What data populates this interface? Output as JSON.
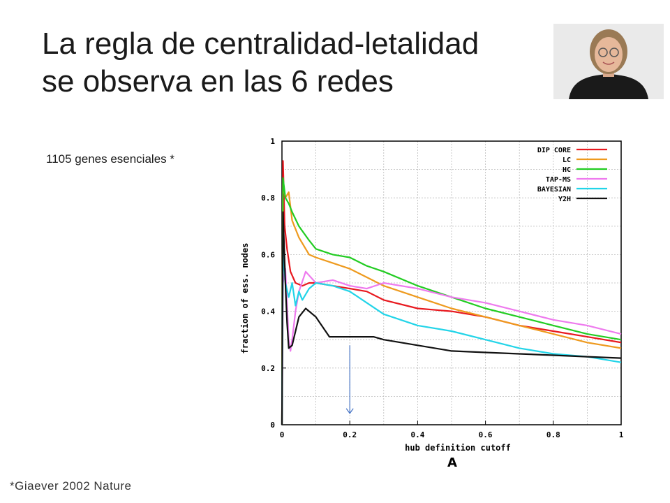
{
  "slide": {
    "title_line1": "La regla de centralidad-letalidad",
    "title_line2": "se observa en las 6 redes",
    "subtitle": "1105 genes esenciales *",
    "citation": "*Giaever 2002 Nature"
  },
  "photo": {
    "description": "portrait-photo"
  },
  "chart_data": {
    "type": "line",
    "title": "",
    "panel_label": "A",
    "xlabel": "hub definition cutoff",
    "ylabel": "fraction of ess. nodes",
    "xlim": [
      0,
      1
    ],
    "ylim": [
      0,
      1
    ],
    "xticks": [
      "0",
      "0.2",
      "0.4",
      "0.6",
      "0.8",
      "1"
    ],
    "yticks": [
      "0",
      "0.2",
      "0.4",
      "0.6",
      "0.8",
      "1"
    ],
    "grid": true,
    "legend_position": "top-right",
    "annotation_arrow_x": 0.2,
    "series": [
      {
        "name": "DIP CORE",
        "color": "#e8191f",
        "x": [
          0,
          0.003,
          0.008,
          0.015,
          0.025,
          0.04,
          0.06,
          0.08,
          0.1,
          0.15,
          0.2,
          0.25,
          0.3,
          0.4,
          0.5,
          0.6,
          0.7,
          0.8,
          0.9,
          1.0
        ],
        "y": [
          0,
          0.93,
          0.7,
          0.62,
          0.54,
          0.5,
          0.49,
          0.5,
          0.5,
          0.49,
          0.48,
          0.47,
          0.44,
          0.41,
          0.4,
          0.38,
          0.35,
          0.33,
          0.31,
          0.29
        ]
      },
      {
        "name": "LC",
        "color": "#ee9a1e",
        "x": [
          0,
          0.003,
          0.01,
          0.02,
          0.03,
          0.05,
          0.08,
          0.1,
          0.15,
          0.2,
          0.25,
          0.3,
          0.4,
          0.5,
          0.6,
          0.7,
          0.8,
          0.9,
          1.0
        ],
        "y": [
          0,
          0.85,
          0.8,
          0.82,
          0.72,
          0.66,
          0.6,
          0.59,
          0.57,
          0.55,
          0.52,
          0.49,
          0.45,
          0.41,
          0.38,
          0.35,
          0.32,
          0.29,
          0.27
        ]
      },
      {
        "name": "HC",
        "color": "#22cc22",
        "x": [
          0,
          0.003,
          0.01,
          0.02,
          0.03,
          0.05,
          0.08,
          0.1,
          0.15,
          0.2,
          0.25,
          0.3,
          0.4,
          0.5,
          0.6,
          0.7,
          0.8,
          0.9,
          1.0
        ],
        "y": [
          0,
          0.87,
          0.8,
          0.78,
          0.75,
          0.7,
          0.65,
          0.62,
          0.6,
          0.59,
          0.56,
          0.54,
          0.49,
          0.45,
          0.41,
          0.38,
          0.35,
          0.32,
          0.3
        ]
      },
      {
        "name": "TAP-MS",
        "color": "#ee7aee",
        "x": [
          0,
          0.003,
          0.01,
          0.02,
          0.025,
          0.03,
          0.04,
          0.05,
          0.07,
          0.1,
          0.15,
          0.2,
          0.25,
          0.3,
          0.4,
          0.5,
          0.6,
          0.7,
          0.8,
          0.9,
          1.0
        ],
        "y": [
          0,
          0.5,
          0.55,
          0.3,
          0.26,
          0.3,
          0.4,
          0.47,
          0.54,
          0.5,
          0.51,
          0.49,
          0.48,
          0.5,
          0.48,
          0.45,
          0.43,
          0.4,
          0.37,
          0.35,
          0.32
        ]
      },
      {
        "name": "BAYESIAN",
        "color": "#22d4e8",
        "x": [
          0,
          0.003,
          0.01,
          0.02,
          0.03,
          0.04,
          0.05,
          0.06,
          0.08,
          0.1,
          0.15,
          0.2,
          0.25,
          0.3,
          0.4,
          0.5,
          0.6,
          0.7,
          0.8,
          0.9,
          1.0
        ],
        "y": [
          0,
          0.62,
          0.5,
          0.45,
          0.5,
          0.42,
          0.47,
          0.44,
          0.48,
          0.5,
          0.49,
          0.47,
          0.43,
          0.39,
          0.35,
          0.33,
          0.3,
          0.27,
          0.25,
          0.24,
          0.22
        ]
      },
      {
        "name": "Y2H",
        "color": "#111111",
        "x": [
          0,
          0.003,
          0.01,
          0.015,
          0.02,
          0.03,
          0.05,
          0.07,
          0.1,
          0.14,
          0.2,
          0.27,
          0.3,
          0.4,
          0.5,
          0.6,
          0.7,
          0.8,
          0.9,
          1.0
        ],
        "y": [
          0,
          0.75,
          0.5,
          0.36,
          0.27,
          0.28,
          0.38,
          0.41,
          0.38,
          0.31,
          0.31,
          0.31,
          0.3,
          0.28,
          0.26,
          0.255,
          0.25,
          0.245,
          0.24,
          0.235
        ]
      }
    ]
  }
}
